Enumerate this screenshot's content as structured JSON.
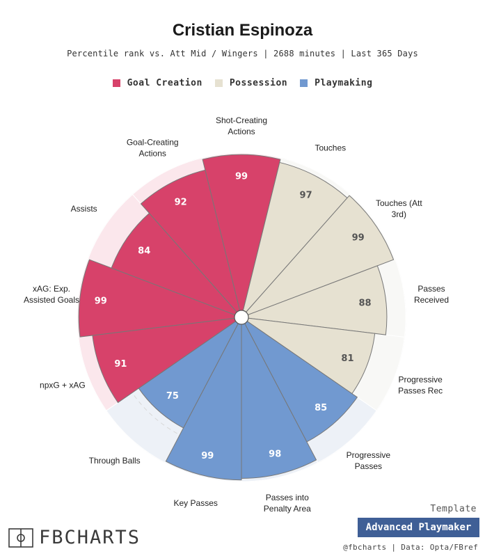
{
  "player_name": "Cristian Espinoza",
  "subtitle": "Percentile rank vs. Att Mid / Wingers | 2688 minutes | Last 365 Days",
  "legend": [
    {
      "label": "Goal Creation",
      "color": "#d7426a"
    },
    {
      "label": "Possession",
      "color": "#e6e1d1"
    },
    {
      "label": "Playmaking",
      "color": "#7199d0"
    }
  ],
  "chart_data": {
    "type": "pie",
    "subtype": "polar-area",
    "range": [
      0,
      100
    ],
    "categories": [
      "Shot-Creating Actions",
      "Touches",
      "Touches (Att 3rd)",
      "Passes Received",
      "Progressive Passes Rec",
      "Progressive Passes",
      "Passes into Penalty Area",
      "Key Passes",
      "Through Balls",
      "npxG + xAG",
      "xAG: Exp. Assisted Goals",
      "Assists",
      "Goal-Creating Actions"
    ],
    "labels": [
      "Shot-Creating\nActions",
      "Touches",
      "Touches (Att\n3rd)",
      "Passes\nReceived",
      "Progressive\nPasses Rec",
      "Progressive\nPasses",
      "Passes into\nPenalty Area",
      "Key Passes",
      "Through Balls",
      "npxG + xAG",
      "xAG: Exp.\nAssisted Goals",
      "Assists",
      "Goal-Creating\nActions"
    ],
    "values": [
      99,
      97,
      99,
      88,
      81,
      85,
      98,
      99,
      75,
      91,
      99,
      84,
      92
    ],
    "groups": [
      "Goal Creation",
      "Possession",
      "Possession",
      "Possession",
      "Possession",
      "Playmaking",
      "Playmaking",
      "Playmaking",
      "Playmaking",
      "Goal Creation",
      "Goal Creation",
      "Goal Creation",
      "Goal Creation"
    ],
    "value_labels": [
      "99",
      "97",
      "99",
      "88",
      "81",
      "85",
      "98",
      "99",
      "75",
      "91",
      "99",
      "84",
      "92"
    ],
    "colors": {
      "Goal Creation": {
        "fill": "#d7426a",
        "bg": "#fbe7ec",
        "label": "#ffffff"
      },
      "Possession": {
        "fill": "#e6e1d1",
        "bg": "#f8f8f6",
        "label": "#555555"
      },
      "Playmaking": {
        "fill": "#7199d0",
        "bg": "#edf1f7",
        "label": "#ffffff"
      }
    }
  },
  "branding": {
    "logo_text": "FBCHARTS",
    "template_label": "Template",
    "template_name": "Advanced Playmaker",
    "credit": "@fbcharts | Data: Opta/FBref"
  }
}
